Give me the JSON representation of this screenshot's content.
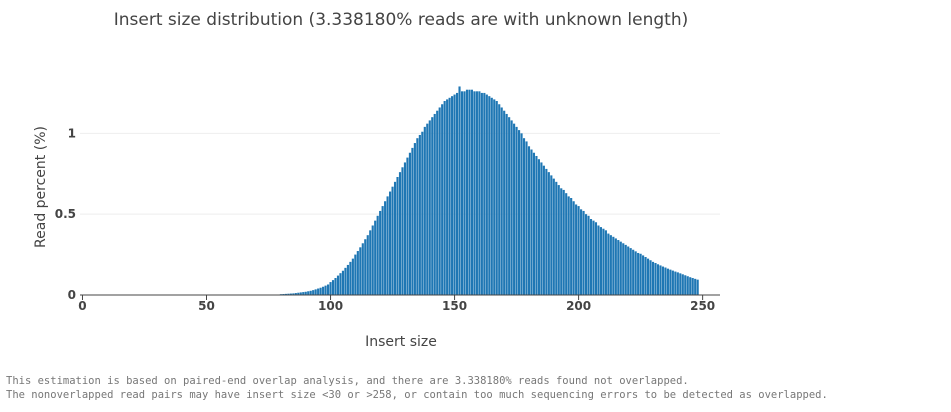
{
  "chart_data": {
    "type": "bar",
    "title": "Insert size distribution (3.338180% reads are with unknown length)",
    "x_label": "Insert size",
    "y_label": "Read percent (%)",
    "color": "#1f77b4",
    "grid": true,
    "xlim": [
      -1,
      257
    ],
    "ylim": [
      0,
      1.33
    ],
    "xticks": [
      0,
      50,
      100,
      150,
      200,
      250
    ],
    "yticks": [
      0,
      0.5,
      1
    ],
    "x": [
      0,
      1,
      2,
      3,
      4,
      5,
      6,
      7,
      8,
      9,
      10,
      11,
      12,
      13,
      14,
      15,
      16,
      17,
      18,
      19,
      20,
      21,
      22,
      23,
      24,
      25,
      26,
      27,
      28,
      29,
      30,
      31,
      32,
      33,
      34,
      35,
      36,
      37,
      38,
      39,
      40,
      41,
      42,
      43,
      44,
      45,
      46,
      47,
      48,
      49,
      50,
      51,
      52,
      53,
      54,
      55,
      56,
      57,
      58,
      59,
      60,
      61,
      62,
      63,
      64,
      65,
      66,
      67,
      68,
      69,
      70,
      71,
      72,
      73,
      74,
      75,
      76,
      77,
      78,
      79,
      80,
      81,
      82,
      83,
      84,
      85,
      86,
      87,
      88,
      89,
      90,
      91,
      92,
      93,
      94,
      95,
      96,
      97,
      98,
      99,
      100,
      101,
      102,
      103,
      104,
      105,
      106,
      107,
      108,
      109,
      110,
      111,
      112,
      113,
      114,
      115,
      116,
      117,
      118,
      119,
      120,
      121,
      122,
      123,
      124,
      125,
      126,
      127,
      128,
      129,
      130,
      131,
      132,
      133,
      134,
      135,
      136,
      137,
      138,
      139,
      140,
      141,
      142,
      143,
      144,
      145,
      146,
      147,
      148,
      149,
      150,
      151,
      152,
      153,
      154,
      155,
      156,
      157,
      158,
      159,
      160,
      161,
      162,
      163,
      164,
      165,
      166,
      167,
      168,
      169,
      170,
      171,
      172,
      173,
      174,
      175,
      176,
      177,
      178,
      179,
      180,
      181,
      182,
      183,
      184,
      185,
      186,
      187,
      188,
      189,
      190,
      191,
      192,
      193,
      194,
      195,
      196,
      197,
      198,
      199,
      200,
      201,
      202,
      203,
      204,
      205,
      206,
      207,
      208,
      209,
      210,
      211,
      212,
      213,
      214,
      215,
      216,
      217,
      218,
      219,
      220,
      221,
      222,
      223,
      224,
      225,
      226,
      227,
      228,
      229,
      230,
      231,
      232,
      233,
      234,
      235,
      236,
      237,
      238,
      239,
      240,
      241,
      242,
      243,
      244,
      245,
      246,
      247,
      248
    ],
    "values": [
      0.002,
      0.002,
      0.002,
      0.002,
      0.002,
      0.002,
      0.002,
      0.002,
      0.002,
      0.002,
      0.002,
      0.002,
      0.002,
      0.002,
      0.002,
      0.002,
      0.002,
      0.002,
      0.002,
      0.002,
      0.002,
      0.002,
      0.002,
      0.002,
      0.002,
      0.002,
      0.002,
      0.002,
      0.002,
      0.002,
      0.002,
      0.002,
      0.002,
      0.002,
      0.002,
      0.002,
      0.002,
      0.002,
      0.002,
      0.002,
      0.003,
      0.003,
      0.003,
      0.003,
      0.003,
      0.003,
      0.003,
      0.003,
      0.003,
      0.003,
      0.003,
      0.003,
      0.003,
      0.003,
      0.003,
      0.003,
      0.003,
      0.003,
      0.003,
      0.003,
      0.003,
      0.003,
      0.003,
      0.003,
      0.003,
      0.003,
      0.003,
      0.003,
      0.003,
      0.003,
      0.003,
      0.003,
      0.003,
      0.003,
      0.003,
      0.003,
      0.003,
      0.003,
      0.003,
      0.003,
      0.005,
      0.006,
      0.007,
      0.008,
      0.009,
      0.01,
      0.012,
      0.014,
      0.016,
      0.018,
      0.02,
      0.023,
      0.026,
      0.03,
      0.035,
      0.04,
      0.045,
      0.051,
      0.058,
      0.065,
      0.08,
      0.092,
      0.105,
      0.12,
      0.135,
      0.15,
      0.168,
      0.186,
      0.205,
      0.225,
      0.25,
      0.272,
      0.295,
      0.32,
      0.345,
      0.37,
      0.4,
      0.43,
      0.46,
      0.49,
      0.52,
      0.55,
      0.58,
      0.61,
      0.64,
      0.67,
      0.7,
      0.73,
      0.76,
      0.79,
      0.82,
      0.85,
      0.88,
      0.91,
      0.94,
      0.97,
      0.99,
      1.01,
      1.04,
      1.06,
      1.08,
      1.1,
      1.12,
      1.14,
      1.16,
      1.18,
      1.2,
      1.21,
      1.22,
      1.23,
      1.24,
      1.25,
      1.29,
      1.26,
      1.26,
      1.27,
      1.27,
      1.27,
      1.26,
      1.26,
      1.26,
      1.25,
      1.25,
      1.24,
      1.23,
      1.22,
      1.21,
      1.2,
      1.18,
      1.16,
      1.14,
      1.12,
      1.1,
      1.08,
      1.06,
      1.04,
      1.02,
      1.0,
      0.97,
      0.95,
      0.92,
      0.9,
      0.88,
      0.86,
      0.84,
      0.82,
      0.8,
      0.78,
      0.76,
      0.74,
      0.72,
      0.7,
      0.68,
      0.66,
      0.65,
      0.63,
      0.61,
      0.6,
      0.58,
      0.56,
      0.55,
      0.53,
      0.52,
      0.5,
      0.49,
      0.47,
      0.46,
      0.45,
      0.43,
      0.42,
      0.41,
      0.4,
      0.38,
      0.37,
      0.36,
      0.35,
      0.34,
      0.33,
      0.32,
      0.31,
      0.3,
      0.29,
      0.28,
      0.27,
      0.26,
      0.255,
      0.245,
      0.235,
      0.225,
      0.215,
      0.205,
      0.198,
      0.19,
      0.183,
      0.176,
      0.17,
      0.163,
      0.157,
      0.151,
      0.145,
      0.14,
      0.134,
      0.128,
      0.122,
      0.116,
      0.11,
      0.105,
      0.1,
      0.095
    ]
  },
  "notes": [
    "This estimation is based on paired-end overlap analysis, and there are 3.338180% reads found not overlapped.",
    "The nonoverlapped read pairs may have insert size <30 or >258, or contain too much sequencing errors to be detected as overlapped."
  ]
}
